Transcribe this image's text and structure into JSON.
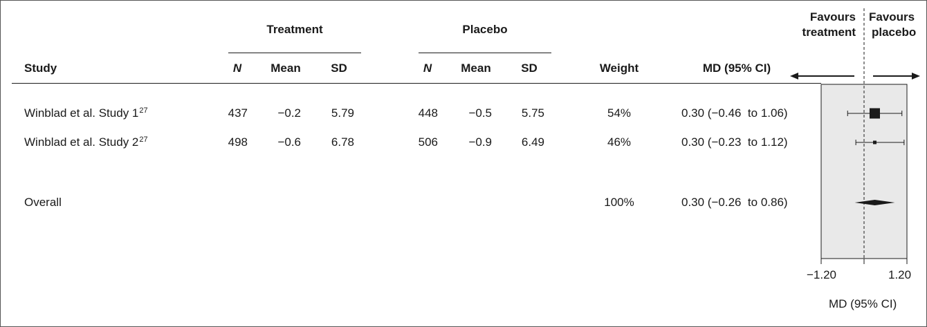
{
  "header": {
    "group_treatment": "Treatment",
    "group_placebo": "Placebo",
    "study": "Study",
    "n": "N",
    "mean": "Mean",
    "sd": "SD",
    "weight": "Weight",
    "md_ci": "MD (95% CI)",
    "favours_left_1": "Favours",
    "favours_left_2": "treatment",
    "favours_right_1": "Favours",
    "favours_right_2": "placebo"
  },
  "rows": [
    {
      "study": "Winblad et al. Study 1",
      "ref": "27",
      "t_n": "437",
      "t_mean": "−0.2",
      "t_sd": "5.79",
      "p_n": "448",
      "p_mean": "−0.5",
      "p_sd": "5.75",
      "weight": "54%",
      "ci": "0.30 (−0.46  to 1.06)"
    },
    {
      "study": "Winblad et al. Study 2",
      "ref": "27",
      "t_n": "498",
      "t_mean": "−0.6",
      "t_sd": "6.78",
      "p_n": "506",
      "p_mean": "−0.9",
      "p_sd": "6.49",
      "weight": "46%",
      "ci": "0.30 (−0.23  to 1.12)"
    }
  ],
  "overall": {
    "label": "Overall",
    "weight": "100%",
    "ci": "0.30 (−0.26  to 0.86)"
  },
  "axis": {
    "min_label": "−1.20",
    "max_label": "1.20",
    "title": "MD (95% CI)"
  },
  "chart_data": {
    "type": "forest",
    "xlabel": "MD (95% CI)",
    "xlim": [
      -1.2,
      1.2
    ],
    "null_line": 0,
    "studies": [
      {
        "name": "Winblad et al. Study 1",
        "md": 0.3,
        "lower": -0.46,
        "upper": 1.06,
        "weight": 54
      },
      {
        "name": "Winblad et al. Study 2",
        "md": 0.3,
        "lower": -0.23,
        "upper": 1.12,
        "weight": 46
      }
    ],
    "overall": {
      "name": "Overall",
      "md": 0.3,
      "lower": -0.26,
      "upper": 0.86,
      "weight": 100
    },
    "colors": {
      "panel": "#e9e9e9",
      "mark": "#1a1a1a"
    }
  }
}
